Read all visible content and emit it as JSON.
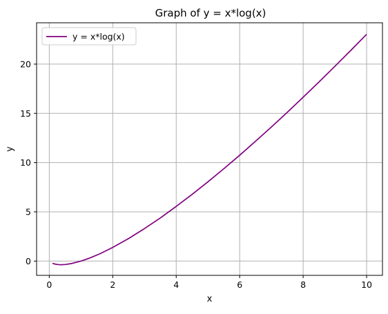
{
  "chart_data": {
    "type": "line",
    "title": "Graph of y = x*log(x)",
    "xlabel": "x",
    "ylabel": "y",
    "xlim": [
      -0.4,
      10.5
    ],
    "ylim": [
      -1.45,
      24.2
    ],
    "xticks": [
      0,
      2,
      4,
      6,
      8,
      10
    ],
    "yticks": [
      0,
      5,
      10,
      15,
      20
    ],
    "xtick_labels": [
      "0",
      "2",
      "4",
      "6",
      "8",
      "10"
    ],
    "ytick_labels": [
      "0",
      "5",
      "10",
      "15",
      "20"
    ],
    "grid": true,
    "legend": {
      "position": "top-left"
    },
    "series": [
      {
        "name": "y = x*log(x)",
        "color": "#800080",
        "x": [
          0.1,
          0.2,
          0.3,
          0.37,
          0.5,
          0.7,
          1.0,
          1.3,
          1.6,
          2.0,
          2.5,
          3.0,
          3.5,
          4.0,
          4.5,
          5.0,
          5.5,
          6.0,
          6.5,
          7.0,
          7.5,
          8.0,
          8.5,
          9.0,
          9.5,
          10.0
        ],
        "y": [
          -0.23,
          -0.32,
          -0.36,
          -0.37,
          -0.35,
          -0.25,
          0.0,
          0.34,
          0.75,
          1.39,
          2.29,
          3.3,
          4.38,
          5.55,
          6.77,
          8.05,
          9.38,
          10.75,
          12.17,
          13.62,
          15.11,
          16.64,
          18.19,
          19.78,
          21.39,
          23.03
        ]
      }
    ]
  }
}
